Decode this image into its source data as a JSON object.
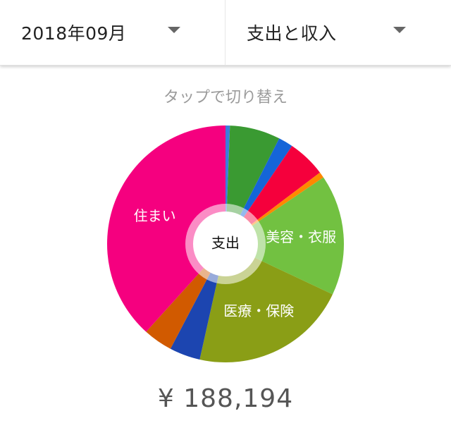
{
  "header": {
    "month_select": {
      "value": "2018年09月",
      "icon": "dropdown-arrow-icon"
    },
    "type_select": {
      "value": "支出と収入",
      "icon": "dropdown-arrow-icon"
    }
  },
  "hint": "タップで切り替え",
  "chart": {
    "center_label": "支出",
    "total": "¥ 188,194"
  },
  "chart_data": {
    "type": "pie",
    "labels": [
      "",
      "",
      "",
      "",
      "",
      "美容・衣服",
      "医療・保険",
      "",
      "",
      "住まい"
    ],
    "values": [
      0.6,
      6.9,
      2.0,
      5.2,
      0.8,
      16.5,
      21.5,
      4.2,
      4.0,
      38.3
    ],
    "colors": [
      "#3b7ddd",
      "#3a9a32",
      "#1565d8",
      "#f5003c",
      "#ff8800",
      "#72c141",
      "#8a9e16",
      "#1c45b0",
      "#d15a00",
      "#f5007f"
    ],
    "unit": "%"
  }
}
